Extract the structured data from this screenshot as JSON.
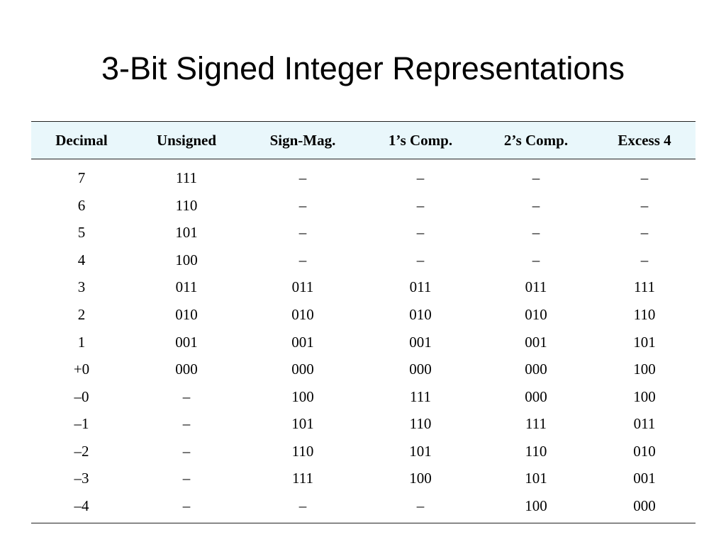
{
  "title": "3-Bit Signed Integer Representations",
  "table": {
    "headers": [
      "Decimal",
      "Unsigned",
      "Sign-Mag.",
      "1’s Comp.",
      "2’s Comp.",
      "Excess 4"
    ],
    "rows": [
      [
        "7",
        "111",
        "–",
        "–",
        "–",
        "–"
      ],
      [
        "6",
        "110",
        "–",
        "–",
        "–",
        "–"
      ],
      [
        "5",
        "101",
        "–",
        "–",
        "–",
        "–"
      ],
      [
        "4",
        "100",
        "–",
        "–",
        "–",
        "–"
      ],
      [
        "3",
        "011",
        "011",
        "011",
        "011",
        "111"
      ],
      [
        "2",
        "010",
        "010",
        "010",
        "010",
        "110"
      ],
      [
        "1",
        "001",
        "001",
        "001",
        "001",
        "101"
      ],
      [
        "+0",
        "000",
        "000",
        "000",
        "000",
        "100"
      ],
      [
        "–0",
        "–",
        "100",
        "111",
        "000",
        "100"
      ],
      [
        "–1",
        "–",
        "101",
        "110",
        "111",
        "011"
      ],
      [
        "–2",
        "–",
        "110",
        "101",
        "110",
        "010"
      ],
      [
        "–3",
        "–",
        "111",
        "100",
        "101",
        "001"
      ],
      [
        "–4",
        "–",
        "–",
        "–",
        "100",
        "000"
      ]
    ]
  }
}
